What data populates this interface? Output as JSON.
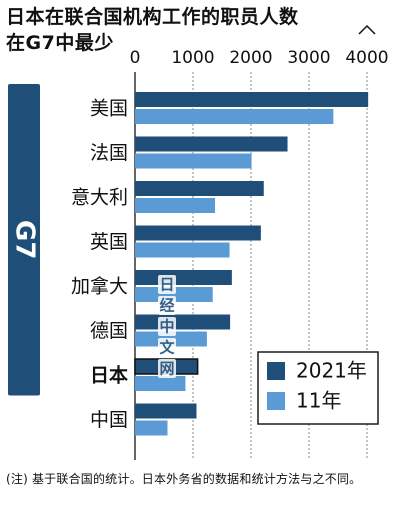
{
  "title_line1": "日本在联合国机构工作的职员人数",
  "title_line2": "在G7中最少",
  "footnote": "(注) 基于联合国的统计。日本外务省的数据和统计方法与之不同。",
  "watermark_chars": [
    "日",
    "经",
    "中",
    "文",
    "网"
  ],
  "colors": {
    "series_2021": "#1f4e79",
    "series_11": "#5b9bd5",
    "g7_band": "#1f4e79",
    "grid": "#8a8a8a",
    "label_box_border": "#1a1a1a"
  },
  "chart_data": {
    "type": "bar",
    "orientation": "horizontal",
    "categories": [
      "美国",
      "法国",
      "意大利",
      "英国",
      "加拿大",
      "德国",
      "日本",
      "中国"
    ],
    "highlight_category": "日本",
    "group_label": "G7",
    "group_members": [
      "美国",
      "法国",
      "意大利",
      "英国",
      "加拿大",
      "德国",
      "日本"
    ],
    "series": [
      {
        "name": "2021年",
        "values": [
          4020,
          2630,
          2220,
          2170,
          1670,
          1640,
          1080,
          1060
        ]
      },
      {
        "name": "11年",
        "values": [
          3420,
          2010,
          1380,
          1630,
          1340,
          1240,
          870,
          560
        ]
      }
    ],
    "xlim": [
      0,
      4000
    ],
    "xticks": [
      0,
      1000,
      2000,
      3000,
      4000
    ],
    "x_axis_position": "top",
    "axis_break": "4000",
    "grid": true,
    "legend_position": "bottom-right"
  }
}
